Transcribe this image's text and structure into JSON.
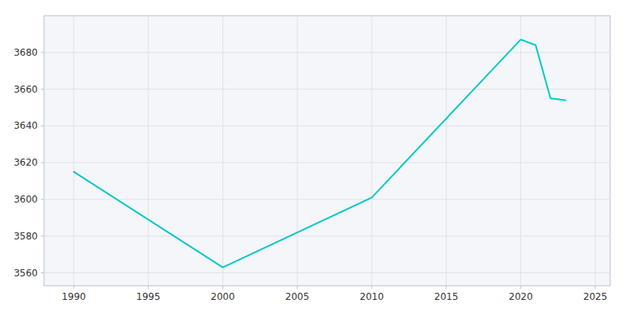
{
  "chart_data": {
    "type": "line",
    "x": [
      1990,
      2000,
      2010,
      2020,
      2021,
      2022,
      2023
    ],
    "values": [
      3615,
      3563,
      3601,
      3687,
      3684,
      3655,
      3654
    ],
    "color": "#00C8C8",
    "xlim": [
      1988,
      2026
    ],
    "ylim": [
      3553,
      3700
    ],
    "xticks": [
      1990,
      1995,
      2000,
      2005,
      2010,
      2015,
      2020,
      2025
    ],
    "yticks": [
      3560,
      3580,
      3600,
      3620,
      3640,
      3660,
      3680
    ],
    "grid": true
  }
}
